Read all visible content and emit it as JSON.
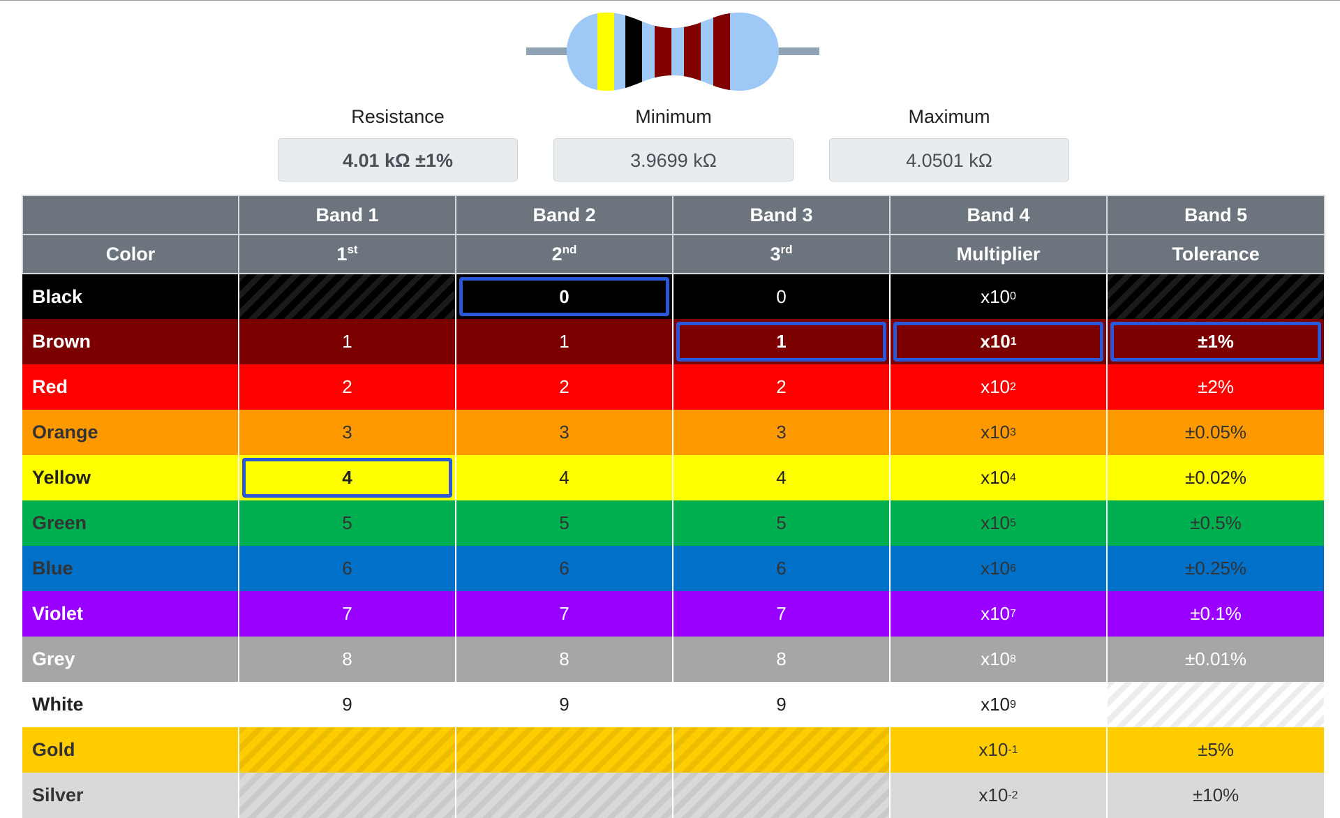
{
  "resistor": {
    "bands": [
      {
        "color": "#ffff00",
        "name": "yellow"
      },
      {
        "color": "#000000",
        "name": "black"
      },
      {
        "color": "#800000",
        "name": "brown"
      },
      {
        "color": "#800000",
        "name": "brown"
      },
      {
        "color": "#800000",
        "name": "brown"
      }
    ],
    "body_color": "#9ec9f7",
    "lead_color": "#8fa3b5"
  },
  "readouts": {
    "resistance": {
      "label": "Resistance",
      "value": "4.01 kΩ ±1%"
    },
    "minimum": {
      "label": "Minimum",
      "value": "3.9699 kΩ"
    },
    "maximum": {
      "label": "Maximum",
      "value": "4.0501 kΩ"
    }
  },
  "table": {
    "header_row1": [
      "",
      "Band 1",
      "Band 2",
      "Band 3",
      "Band 4",
      "Band 5"
    ],
    "header_row2": [
      {
        "text": "Color",
        "sup": ""
      },
      {
        "text": "1",
        "sup": "st"
      },
      {
        "text": "2",
        "sup": "nd"
      },
      {
        "text": "3",
        "sup": "rd"
      },
      {
        "text": "Multiplier",
        "sup": ""
      },
      {
        "text": "Tolerance",
        "sup": ""
      }
    ],
    "rows": [
      {
        "name": "Black",
        "bg": "#000000",
        "fg": "#ffffff",
        "digits": [
          null,
          "0",
          "0"
        ],
        "mult": "0",
        "tol": null,
        "hatch": "dark"
      },
      {
        "name": "Brown",
        "bg": "#7b0000",
        "fg": "#ffffff",
        "digits": [
          "1",
          "1",
          "1"
        ],
        "mult": "1",
        "tol": "±1%",
        "hatch": "dark"
      },
      {
        "name": "Red",
        "bg": "#ff0000",
        "fg": "#ffffff",
        "digits": [
          "2",
          "2",
          "2"
        ],
        "mult": "2",
        "tol": "±2%",
        "hatch": "dark"
      },
      {
        "name": "Orange",
        "bg": "#ff9900",
        "fg": "#333333",
        "digits": [
          "3",
          "3",
          "3"
        ],
        "mult": "3",
        "tol": "±0.05%",
        "hatch": "light"
      },
      {
        "name": "Yellow",
        "bg": "#ffff00",
        "fg": "#222222",
        "digits": [
          "4",
          "4",
          "4"
        ],
        "mult": "4",
        "tol": "±0.02%",
        "hatch": "light"
      },
      {
        "name": "Green",
        "bg": "#00b050",
        "fg": "#333333",
        "digits": [
          "5",
          "5",
          "5"
        ],
        "mult": "5",
        "tol": "±0.5%",
        "hatch": "light"
      },
      {
        "name": "Blue",
        "bg": "#0070c8",
        "fg": "#333333",
        "digits": [
          "6",
          "6",
          "6"
        ],
        "mult": "6",
        "tol": "±0.25%",
        "hatch": "light"
      },
      {
        "name": "Violet",
        "bg": "#9900ff",
        "fg": "#ffffff",
        "digits": [
          "7",
          "7",
          "7"
        ],
        "mult": "7",
        "tol": "±0.1%",
        "hatch": "dark"
      },
      {
        "name": "Grey",
        "bg": "#a6a6a6",
        "fg": "#ffffff",
        "digits": [
          "8",
          "8",
          "8"
        ],
        "mult": "8",
        "tol": "±0.01%",
        "hatch": "dark"
      },
      {
        "name": "White",
        "bg": "#ffffff",
        "fg": "#222222",
        "digits": [
          "9",
          "9",
          "9"
        ],
        "mult": "9",
        "tol": null,
        "hatch": "light"
      },
      {
        "name": "Gold",
        "bg": "#ffcc00",
        "fg": "#333333",
        "digits": [
          null,
          null,
          null
        ],
        "mult": "-1",
        "tol": "±5%",
        "hatch": "light"
      },
      {
        "name": "Silver",
        "bg": "#d9d9d9",
        "fg": "#333333",
        "digits": [
          null,
          null,
          null
        ],
        "mult": "-2",
        "tol": "±10%",
        "hatch": "light"
      }
    ],
    "mult_base": "x10",
    "selected": {
      "band1": "Yellow",
      "band2": "Black",
      "band3": "Brown",
      "band4": "Brown",
      "band5": "Brown"
    },
    "selection_color": "#2a58d6"
  }
}
